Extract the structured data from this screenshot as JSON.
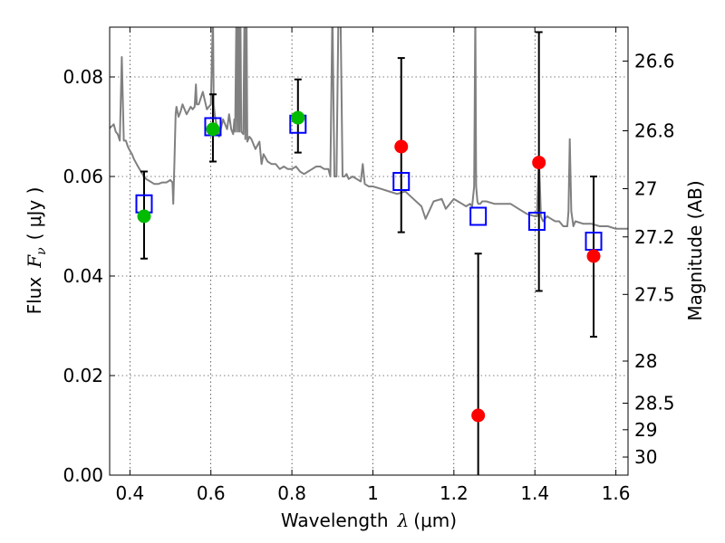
{
  "chart_data": {
    "type": "scatter",
    "title": "",
    "x_axis": {
      "label_text": "Wavelength",
      "label_symbol": "λ",
      "label_unit": "(μm)",
      "range": [
        0.35,
        1.63
      ],
      "ticks": [
        0.4,
        0.6,
        0.8,
        1.0,
        1.2,
        1.4,
        1.6
      ],
      "tick_labels": [
        "0.4",
        "0.6",
        "0.8",
        "1",
        "1.2",
        "1.4",
        "1.6"
      ]
    },
    "y_axis": {
      "label_text": "Flux",
      "label_symbol": "F",
      "label_sub": "ν",
      "label_unit": "( μJy )",
      "range": [
        0.0,
        0.09
      ],
      "ticks": [
        0.0,
        0.02,
        0.04,
        0.06,
        0.08
      ],
      "tick_labels": [
        "0.00",
        "0.02",
        "0.04",
        "0.06",
        "0.08"
      ]
    },
    "y2_axis": {
      "label": "Magnitude (AB)",
      "tick_labels": [
        "26.6",
        "26.8",
        "27",
        "27.2",
        "27.5",
        "28",
        "28.5",
        "29",
        "30"
      ],
      "tick_values": [
        26.6,
        26.8,
        27.0,
        27.2,
        27.5,
        28.0,
        28.5,
        29.0,
        30.0
      ]
    },
    "grid": true,
    "series": [
      {
        "kind": "model-spectrum",
        "color": "#808080",
        "x": [
          0.35,
          0.36,
          0.365,
          0.37,
          0.375,
          0.38,
          0.385,
          0.39,
          0.395,
          0.4,
          0.405,
          0.41,
          0.42,
          0.43,
          0.44,
          0.45,
          0.46,
          0.47,
          0.48,
          0.49,
          0.5,
          0.505,
          0.507,
          0.51,
          0.513,
          0.515,
          0.52,
          0.525,
          0.53,
          0.54,
          0.55,
          0.555,
          0.56,
          0.563,
          0.565,
          0.57,
          0.58,
          0.59,
          0.6,
          0.605,
          0.607,
          0.61,
          0.62,
          0.63,
          0.64,
          0.645,
          0.65,
          0.655,
          0.658,
          0.66,
          0.663,
          0.665,
          0.668,
          0.67,
          0.673,
          0.675,
          0.68,
          0.683,
          0.685,
          0.688,
          0.69,
          0.695,
          0.7,
          0.71,
          0.72,
          0.725,
          0.73,
          0.74,
          0.75,
          0.76,
          0.77,
          0.78,
          0.79,
          0.8,
          0.81,
          0.82,
          0.83,
          0.84,
          0.85,
          0.86,
          0.87,
          0.88,
          0.89,
          0.895,
          0.9,
          0.905,
          0.91,
          0.915,
          0.92,
          0.925,
          0.93,
          0.935,
          0.94,
          0.95,
          0.96,
          0.97,
          0.975,
          0.98,
          0.99,
          1.0,
          1.02,
          1.04,
          1.06,
          1.08,
          1.1,
          1.12,
          1.13,
          1.15,
          1.17,
          1.18,
          1.19,
          1.2,
          1.21,
          1.22,
          1.23,
          1.24,
          1.245,
          1.25,
          1.253,
          1.255,
          1.258,
          1.26,
          1.265,
          1.27,
          1.28,
          1.3,
          1.32,
          1.34,
          1.36,
          1.38,
          1.4,
          1.405,
          1.41,
          1.415,
          1.42,
          1.43,
          1.44,
          1.45,
          1.46,
          1.47,
          1.48,
          1.483,
          1.486,
          1.49,
          1.495,
          1.5,
          1.52,
          1.54,
          1.56,
          1.58,
          1.6,
          1.63
        ],
        "y": [
          0.0697,
          0.0705,
          0.069,
          0.0685,
          0.0672,
          0.084,
          0.0672,
          0.0672,
          0.066,
          0.0652,
          0.0645,
          0.0635,
          0.062,
          0.0606,
          0.0595,
          0.059,
          0.0585,
          0.0585,
          0.0588,
          0.0588,
          0.0593,
          0.0588,
          0.0545,
          0.063,
          0.0725,
          0.074,
          0.072,
          0.073,
          0.0745,
          0.0725,
          0.074,
          0.0735,
          0.074,
          0.0785,
          0.0745,
          0.0745,
          0.077,
          0.0735,
          0.0745,
          0.0925,
          0.0745,
          0.072,
          0.068,
          0.0715,
          0.0695,
          0.0725,
          0.0695,
          0.0685,
          0.0715,
          0.069,
          0.0935,
          0.069,
          0.0935,
          0.069,
          0.0935,
          0.069,
          0.0685,
          0.0935,
          0.0675,
          0.0935,
          0.067,
          0.068,
          0.0675,
          0.0655,
          0.067,
          0.0625,
          0.0645,
          0.063,
          0.0625,
          0.0625,
          0.0615,
          0.062,
          0.0615,
          0.0615,
          0.062,
          0.061,
          0.0605,
          0.061,
          0.0615,
          0.062,
          0.062,
          0.0615,
          0.0615,
          0.06,
          0.0935,
          0.06,
          0.06,
          0.0935,
          0.0935,
          0.06,
          0.06,
          0.0605,
          0.0595,
          0.06,
          0.0595,
          0.059,
          0.0625,
          0.0585,
          0.058,
          0.058,
          0.0575,
          0.057,
          0.0565,
          0.057,
          0.0555,
          0.054,
          0.0515,
          0.055,
          0.0555,
          0.0535,
          0.0545,
          0.0555,
          0.055,
          0.0545,
          0.054,
          0.0545,
          0.054,
          0.058,
          0.0935,
          0.058,
          0.055,
          0.0545,
          0.0545,
          0.055,
          0.055,
          0.0545,
          0.0545,
          0.0545,
          0.0535,
          0.0525,
          0.052,
          0.052,
          0.064,
          0.052,
          0.051,
          0.052,
          0.0515,
          0.051,
          0.051,
          0.05,
          0.05,
          0.053,
          0.0675,
          0.053,
          0.05,
          0.051,
          0.0505,
          0.0505,
          0.05,
          0.05,
          0.0495,
          0.0495
        ]
      },
      {
        "kind": "model-photometry",
        "marker": "open-square",
        "color": "#0000ff",
        "x": [
          0.435,
          0.605,
          0.815,
          1.07,
          1.26,
          1.405,
          1.545
        ],
        "y": [
          0.0545,
          0.07,
          0.0705,
          0.059,
          0.052,
          0.051,
          0.047
        ]
      },
      {
        "kind": "observed-green",
        "marker": "filled-circle",
        "color": "#00bb00",
        "x": [
          0.435,
          0.605,
          0.815
        ],
        "y": [
          0.052,
          0.0695,
          0.0718
        ],
        "yerr_low": [
          0.0435,
          0.063,
          0.0648
        ],
        "yerr_high": [
          0.061,
          0.0765,
          0.0795
        ]
      },
      {
        "kind": "observed-red",
        "marker": "filled-circle",
        "color": "#ff0000",
        "x": [
          1.07,
          1.26,
          1.41,
          1.545
        ],
        "y": [
          0.066,
          0.012,
          0.0628,
          0.044
        ],
        "yerr_low": [
          0.0488,
          0.0,
          0.037,
          0.0278
        ],
        "yerr_high": [
          0.0838,
          0.0445,
          0.089,
          0.06
        ]
      }
    ]
  }
}
